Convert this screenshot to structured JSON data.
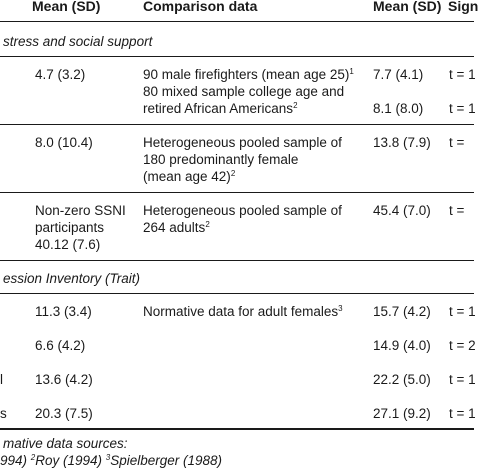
{
  "header": {
    "col_mean": "Mean (SD)",
    "col_comparison": "Comparison data",
    "col_mean2": "Mean (SD)",
    "col_sig": "Sign"
  },
  "sections": [
    {
      "title": "stress and social support",
      "rows": [
        {
          "mean": "4.7 (3.2)",
          "comparison": [
            "90 male firefighters (mean age 25)",
            "80 mixed sample college age and",
            "retired African Americans"
          ],
          "comp_sups": [
            "1",
            "",
            "2"
          ],
          "means2": [
            "7.7 (4.1)",
            "8.1 (8.0)"
          ],
          "sigs": [
            "t = 1",
            "t = 1"
          ]
        },
        {
          "mean": "8.0 (10.4)",
          "comparison": [
            "Heterogeneous pooled sample of",
            "180 predominantly female",
            "(mean age 42)"
          ],
          "comp_sups": [
            "",
            "",
            "2"
          ],
          "means2": [
            "13.8 (7.9)"
          ],
          "sigs": [
            "t ="
          ]
        },
        {
          "mean_lines": [
            "Non-zero SSNI",
            "participants",
            "40.12 (7.6)"
          ],
          "comparison": [
            "Heterogeneous pooled sample of",
            "264 adults"
          ],
          "comp_sups": [
            "",
            "2"
          ],
          "means2": [
            "45.4 (7.0)"
          ],
          "sigs": [
            "t ="
          ]
        }
      ]
    },
    {
      "title": "ession Inventory (Trait)",
      "rows": [
        {
          "label": "",
          "mean": "11.3 (3.4)",
          "comparison": "Normative data for adult females",
          "comp_sup": "3",
          "mean2": "15.7 (4.2)",
          "sig": "t = 1"
        },
        {
          "label": "",
          "mean": "6.6 (4.2)",
          "comparison": "",
          "comp_sup": "",
          "mean2": "14.9 (4.0)",
          "sig": "t = 2"
        },
        {
          "label": "l",
          "mean": "13.6 (4.2)",
          "comparison": "",
          "comp_sup": "",
          "mean2": "22.2 (5.0)",
          "sig": "t = 1"
        },
        {
          "label": "s",
          "mean": "20.3 (7.5)",
          "comparison": "",
          "comp_sup": "",
          "mean2": "27.1 (9.2)",
          "sig": "t = 1"
        }
      ]
    }
  ],
  "footnote": {
    "line1": "mative data sources:",
    "line2_parts": [
      {
        "sup": "",
        "text": "994) "
      },
      {
        "sup": "2",
        "text": "Roy (1994) "
      },
      {
        "sup": "3",
        "text": "Spielberger (1988)"
      }
    ]
  }
}
